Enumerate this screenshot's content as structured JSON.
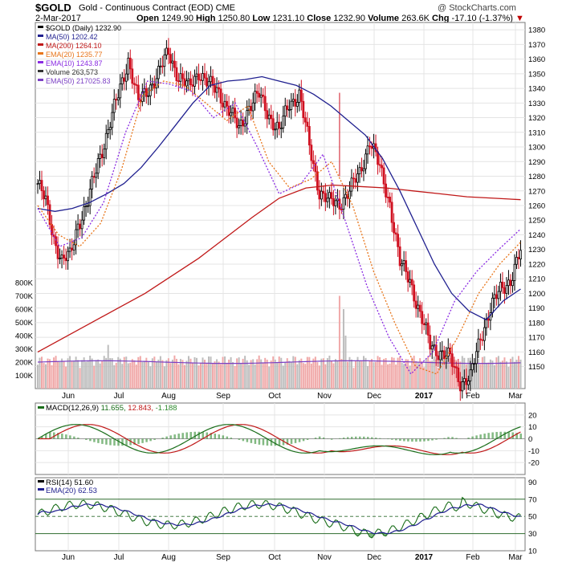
{
  "header": {
    "symbol": "$GOLD",
    "description": "Gold - Continuous Contract (EOD) CME",
    "date": "2-Mar-2017",
    "open_label": "Open",
    "open": "1249.90",
    "high_label": "High",
    "high": "1250.80",
    "low_label": "Low",
    "low": "1231.10",
    "close_label": "Close",
    "close": "1232.90",
    "volume_label": "Volume",
    "volume": "263.6K",
    "chg_label": "Chg",
    "chg": "-17.10 (-1.37%)",
    "chg_arrow": "▼",
    "copyright": "@ StockCharts.com"
  },
  "legend_main": [
    {
      "text": "$GOLD (Daily) 1232.90",
      "color": "#000000"
    },
    {
      "text": "MA(50) 1202.42",
      "color": "#1f1f8f"
    },
    {
      "text": "MA(200) 1264.10",
      "color": "#c01818"
    },
    {
      "text": "EMA(20) 1235.77",
      "color": "#e8751a"
    },
    {
      "text": "EMA(10) 1243.87",
      "color": "#8a2be2"
    },
    {
      "text": "Volume 263,573",
      "color": "#333333"
    },
    {
      "text": "EMA(50) 217025.83",
      "color": "#7b3fc4"
    }
  ],
  "legend_macd": {
    "label": "MACD(12,26,9)",
    "v1": "11.655",
    "v2": "12.843",
    "v3": "-1.188"
  },
  "legend_rsi": [
    {
      "text": "RSI(14) 51.60",
      "color": "#000000"
    },
    {
      "text": "EMA(20) 62.53",
      "color": "#1f1f8f"
    }
  ],
  "month_labels": [
    "Jun",
    "Jul",
    "Aug",
    "Sep",
    "Oct",
    "Nov",
    "Dec",
    "2017",
    "Feb",
    "Mar"
  ],
  "colors": {
    "up": "#000000",
    "down": "#d01020",
    "ma50": "#1f1f8f",
    "ma200": "#c01818",
    "ema20": "#e8751a",
    "ema10": "#8a2be2",
    "vol_up": "#bdbdbd",
    "vol_down": "#f0a8a8",
    "vol_ema": "#7b3fc4",
    "grid": "#e4e4e4",
    "macd_line": "#1a6e1a",
    "macd_signal": "#c01818",
    "macd_hist": "#2e8b2e",
    "rsi_line": "#1a6e1a",
    "rsi_ema": "#1f1f8f"
  },
  "chart_data": {
    "type": "line",
    "title": "$GOLD (Daily)",
    "price_axis": {
      "ylim": [
        1135,
        1385
      ],
      "ticks": [
        1150,
        1160,
        1170,
        1180,
        1190,
        1200,
        1210,
        1220,
        1230,
        1240,
        1250,
        1260,
        1270,
        1280,
        1290,
        1300,
        1310,
        1320,
        1330,
        1340,
        1350,
        1360,
        1370,
        1380
      ]
    },
    "volume_axis": {
      "ylim": [
        0,
        800000
      ],
      "ticks": [
        100000,
        200000,
        300000,
        400000,
        500000,
        600000,
        700000,
        800000
      ],
      "tick_labels": [
        "100K",
        "200K",
        "300K",
        "400K",
        "500K",
        "600K",
        "700K",
        "800K"
      ]
    },
    "macd_axis": {
      "ylim": [
        -30,
        30
      ],
      "ticks": [
        -20,
        -10,
        0,
        10,
        20
      ]
    },
    "rsi_axis": {
      "ylim": [
        10,
        95
      ],
      "ticks": [
        30,
        50,
        70,
        90
      ],
      "tick_labels_all": [
        "90",
        "70",
        "50",
        "30",
        "10"
      ],
      "tick_values_all": [
        90,
        70,
        50,
        30,
        10
      ]
    },
    "series": [
      {
        "name": "$GOLD",
        "x": [
          0,
          4,
          8,
          12,
          16,
          20,
          25,
          30,
          35,
          40,
          45,
          50,
          55,
          60,
          65,
          70,
          75,
          80,
          85,
          90,
          95,
          100,
          105,
          110,
          115,
          120,
          125,
          130,
          135,
          140,
          145,
          150,
          155,
          160,
          165,
          170,
          175,
          180,
          185,
          190,
          195,
          200,
          205,
          210,
          215,
          220,
          225,
          230,
          235,
          240
        ],
        "values": [
          1275,
          1262,
          1238,
          1222,
          1225,
          1248,
          1262,
          1290,
          1312,
          1335,
          1360,
          1330,
          1340,
          1350,
          1365,
          1348,
          1340,
          1352,
          1342,
          1338,
          1325,
          1312,
          1328,
          1335,
          1322,
          1310,
          1330,
          1336,
          1300,
          1270,
          1262,
          1262,
          1270,
          1282,
          1305,
          1285,
          1262,
          1220,
          1210,
          1185,
          1165,
          1160,
          1155,
          1140,
          1142,
          1170,
          1190,
          1202,
          1210,
          1228
        ]
      },
      {
        "name": "MA(50)",
        "values": [
          1258,
          1256,
          1258,
          1262,
          1268,
          1275,
          1286,
          1300,
          1315,
          1330,
          1342,
          1345,
          1346,
          1348,
          1345,
          1342,
          1336,
          1328,
          1318,
          1308,
          1292,
          1270,
          1245,
          1220,
          1200,
          1188,
          1182,
          1195,
          1203
        ]
      },
      {
        "name": "MA(200)",
        "values": [
          1160,
          1170,
          1180,
          1190,
          1200,
          1212,
          1224,
          1238,
          1252,
          1265,
          1272,
          1274,
          1273,
          1272,
          1270,
          1268,
          1266,
          1265,
          1264
        ]
      },
      {
        "name": "EMA(20)",
        "values": [
          1260,
          1240,
          1232,
          1248,
          1285,
          1335,
          1345,
          1342,
          1330,
          1318,
          1328,
          1290,
          1272,
          1278,
          1290,
          1260,
          1215,
          1180,
          1150,
          1145,
          1170,
          1200,
          1220,
          1235
        ]
      },
      {
        "name": "EMA(10)",
        "values": [
          1258,
          1232,
          1238,
          1262,
          1310,
          1345,
          1343,
          1338,
          1320,
          1330,
          1300,
          1268,
          1275,
          1295,
          1250,
          1205,
          1170,
          1145,
          1160,
          1195,
          1215,
          1230,
          1244
        ]
      }
    ]
  }
}
